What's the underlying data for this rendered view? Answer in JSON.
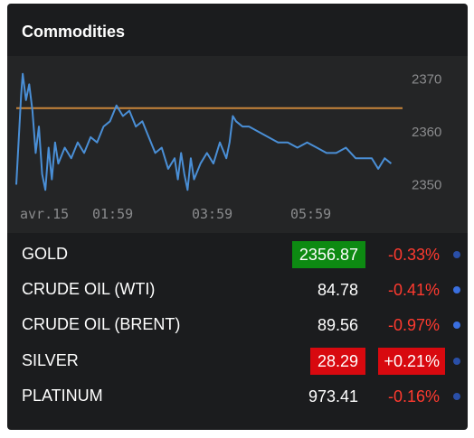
{
  "widget": {
    "title": "Commodities"
  },
  "chart_data": {
    "type": "line",
    "series": [
      {
        "color": "#4a8fd6",
        "points": [
          [
            0,
            2350
          ],
          [
            3,
            2367
          ],
          [
            4,
            2371
          ],
          [
            6,
            2366
          ],
          [
            8,
            2369
          ],
          [
            10,
            2364
          ],
          [
            12,
            2356
          ],
          [
            14,
            2361
          ],
          [
            16,
            2352
          ],
          [
            18,
            2349
          ],
          [
            20,
            2357
          ],
          [
            22,
            2351
          ],
          [
            24,
            2358
          ],
          [
            26,
            2354
          ],
          [
            30,
            2357
          ],
          [
            34,
            2355
          ],
          [
            38,
            2358
          ],
          [
            42,
            2356
          ],
          [
            46,
            2359
          ],
          [
            50,
            2358
          ],
          [
            54,
            2361
          ],
          [
            58,
            2362
          ],
          [
            62,
            2365
          ],
          [
            66,
            2363
          ],
          [
            70,
            2364
          ],
          [
            74,
            2361
          ],
          [
            78,
            2362
          ],
          [
            82,
            2359
          ],
          [
            86,
            2356
          ],
          [
            90,
            2357
          ],
          [
            94,
            2353
          ],
          [
            98,
            2355
          ],
          [
            100,
            2351
          ],
          [
            102,
            2356
          ],
          [
            104,
            2352
          ],
          [
            106,
            2349
          ],
          [
            108,
            2355
          ],
          [
            110,
            2351
          ],
          [
            114,
            2354
          ],
          [
            118,
            2356
          ],
          [
            122,
            2354
          ],
          [
            126,
            2358
          ],
          [
            130,
            2355
          ],
          [
            132,
            2358
          ],
          [
            134,
            2363
          ],
          [
            136,
            2362
          ],
          [
            140,
            2361
          ],
          [
            144,
            2361
          ],
          [
            150,
            2360
          ],
          [
            156,
            2359
          ],
          [
            162,
            2358
          ],
          [
            168,
            2358
          ],
          [
            174,
            2357
          ],
          [
            180,
            2358
          ],
          [
            186,
            2357
          ],
          [
            192,
            2356
          ],
          [
            198,
            2356
          ],
          [
            204,
            2357
          ],
          [
            210,
            2355
          ],
          [
            216,
            2355
          ],
          [
            220,
            2355
          ],
          [
            224,
            2353
          ],
          [
            228,
            2355
          ],
          [
            232,
            2354
          ]
        ]
      }
    ],
    "reference_line": {
      "value": 2364.5,
      "color": "#c8853a"
    },
    "ylim": [
      2347,
      2373
    ],
    "yticks": [
      2370,
      2360,
      2350
    ],
    "xticks": [
      "avr.15",
      "01:59",
      "03:59",
      "05:59"
    ],
    "grid": false
  },
  "rows": [
    {
      "name": "GOLD",
      "price": "2356.87",
      "change": "-0.33%",
      "price_state": "up",
      "change_state": "neg"
    },
    {
      "name": "CRUDE OIL (WTI)",
      "price": "84.78",
      "change": "-0.41%",
      "price_state": "none",
      "change_state": "neg"
    },
    {
      "name": "CRUDE OIL (BRENT)",
      "price": "89.56",
      "change": "-0.97%",
      "price_state": "none",
      "change_state": "neg"
    },
    {
      "name": "SILVER",
      "price": "28.29",
      "change": "+0.21%",
      "price_state": "down",
      "change_state": "pos"
    },
    {
      "name": "PLATINUM",
      "price": "973.41",
      "change": "-0.16%",
      "price_state": "none",
      "change_state": "neg"
    }
  ]
}
